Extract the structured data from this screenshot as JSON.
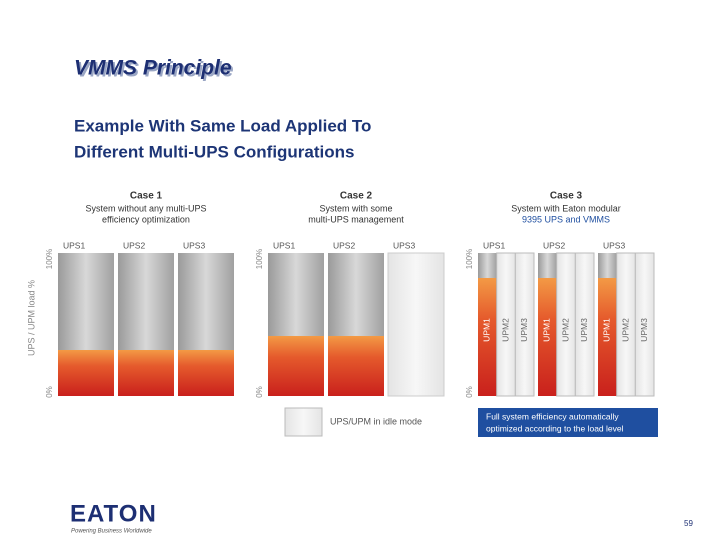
{
  "title": "VMMS Principle",
  "subtitle": [
    "Example With Same Load Applied To",
    "Different Multi-UPS Configurations"
  ],
  "axis": {
    "label": "UPS / UPM load %",
    "top": "100%",
    "bottom": "0%"
  },
  "cases": [
    {
      "title": "Case 1",
      "description": [
        "System without any multi-UPS",
        "efficiency optimization"
      ],
      "units": [
        "UPS1",
        "UPS2",
        "UPS3"
      ]
    },
    {
      "title": "Case 2",
      "description": [
        "System with some",
        "multi-UPS management"
      ],
      "units": [
        "UPS1",
        "UPS2",
        "UPS3"
      ]
    },
    {
      "title": "Case 3",
      "description": [
        "System with Eaton modular",
        "9395 UPS and VMMS"
      ],
      "units": [
        "UPS1",
        "UPS2",
        "UPS3"
      ],
      "modules": [
        "UPM1",
        "UPM2",
        "UPM3"
      ]
    }
  ],
  "legend": {
    "idle": "UPS/UPM in idle mode",
    "optimized": [
      "Full system efficiency automatically",
      "optimized according to the load level"
    ]
  },
  "footer": {
    "logo": "EATON",
    "tagline": "Powering Business Worldwide",
    "page": "59"
  }
}
